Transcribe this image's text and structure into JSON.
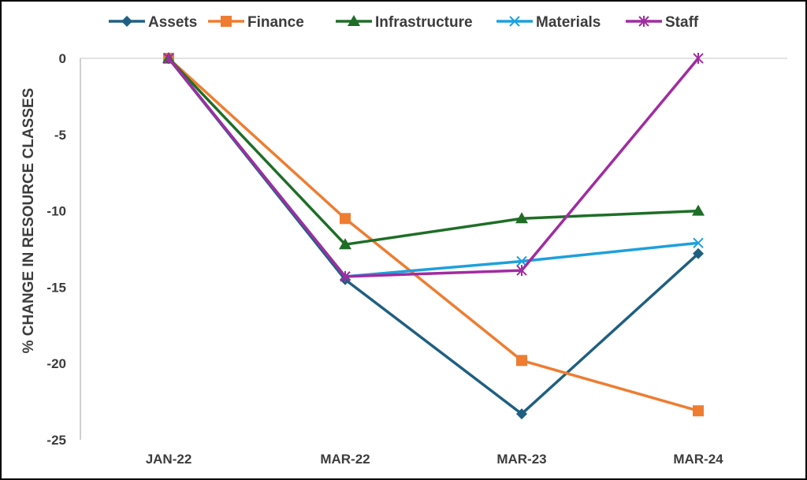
{
  "chart_data": {
    "type": "line",
    "title": "",
    "xlabel": "",
    "ylabel": "% CHANGE IN RESOURCE CLASSES",
    "categories": [
      "JAN-22",
      "MAR-22",
      "MAR-23",
      "MAR-24"
    ],
    "ylim": [
      -25,
      0
    ],
    "yticks": [
      "0",
      "-5",
      "-10",
      "-15",
      "-20",
      "-25"
    ],
    "grid": false,
    "legend_position": "top",
    "series": [
      {
        "name": "Assets",
        "color": "#1f5f82",
        "marker": "diamond",
        "values": [
          0,
          -14.5,
          -23.3,
          -12.8
        ]
      },
      {
        "name": "Finance",
        "color": "#ee7d31",
        "marker": "square",
        "values": [
          0,
          -10.5,
          -19.8,
          -23.1
        ]
      },
      {
        "name": "Infrastructure",
        "color": "#1e6e26",
        "marker": "triangle",
        "values": [
          0,
          -12.2,
          -10.5,
          -10.0
        ]
      },
      {
        "name": "Materials",
        "color": "#1ea0dc",
        "marker": "x",
        "values": [
          0,
          -14.3,
          -13.3,
          -12.1
        ]
      },
      {
        "name": "Staff",
        "color": "#a02ca0",
        "marker": "star",
        "values": [
          0,
          -14.3,
          -13.9,
          0
        ]
      }
    ]
  }
}
